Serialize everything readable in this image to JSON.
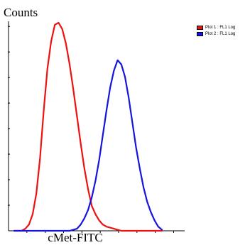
{
  "chart_data": {
    "type": "area",
    "title": "",
    "ylabel": "Counts",
    "xlabel": "cMet-FITC",
    "x_scale": "log",
    "grid": false,
    "legend_position": "top-right",
    "series": [
      {
        "name": "Plot 1 : FL1 Log",
        "color": "#ee1111",
        "x": [
          0,
          1,
          2,
          3,
          4,
          5,
          6,
          7,
          8,
          9,
          10,
          11,
          12,
          13,
          14,
          15,
          16,
          17,
          18,
          19,
          20,
          21,
          22,
          23,
          24,
          25,
          26,
          27,
          28,
          29,
          30,
          31,
          32,
          33,
          34,
          35,
          36,
          37,
          38,
          39,
          40
        ],
        "values": [
          0,
          0,
          0,
          1,
          3,
          8,
          18,
          35,
          58,
          78,
          91,
          99,
          100,
          97,
          90,
          80,
          68,
          55,
          42,
          30,
          20,
          12,
          8,
          5,
          3,
          2,
          1.5,
          1,
          0.5,
          0,
          0,
          0,
          0,
          0,
          0,
          0,
          0,
          0,
          0,
          0,
          0
        ]
      },
      {
        "name": "Plot 2 : FL1 Log",
        "color": "#1515dd",
        "x": [
          0,
          1,
          2,
          3,
          4,
          5,
          6,
          7,
          8,
          9,
          10,
          11,
          12,
          13,
          14,
          15,
          16,
          17,
          18,
          19,
          20,
          21,
          22,
          23,
          24,
          25,
          26,
          27,
          28,
          29,
          30,
          31,
          32,
          33,
          34,
          35,
          36,
          37,
          38,
          39,
          40
        ],
        "values": [
          0,
          0,
          0,
          0,
          0,
          0,
          0,
          0,
          0,
          0,
          0,
          0,
          0,
          0,
          0,
          0,
          0.5,
          1,
          3,
          6,
          10,
          16,
          24,
          34,
          46,
          58,
          69,
          77,
          82,
          80,
          74,
          64,
          52,
          40,
          30,
          21,
          14,
          9,
          5,
          2,
          0.5
        ]
      }
    ]
  }
}
